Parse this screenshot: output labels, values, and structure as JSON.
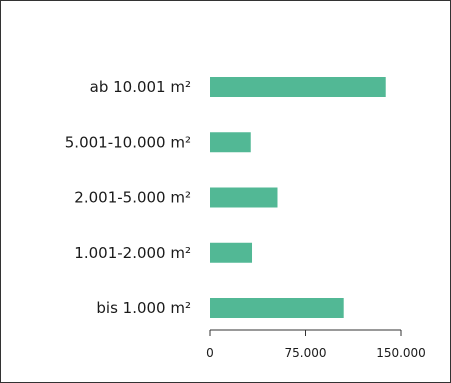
{
  "chart_data": {
    "type": "bar",
    "orientation": "horizontal",
    "categories": [
      "ab 10.001 m²",
      "5.001-10.000 m²",
      "2.001-5.000 m²",
      "1.001-2.000 m²",
      "bis 1.000 m²"
    ],
    "values": [
      138000,
      32000,
      53000,
      33000,
      105000
    ],
    "xlim": [
      0,
      150000
    ],
    "xticks": [
      0,
      75000,
      150000
    ],
    "xtick_labels": [
      "0",
      "75.000",
      "150.000"
    ],
    "bar_color": "#52b895",
    "grid": false,
    "legend": "none"
  }
}
